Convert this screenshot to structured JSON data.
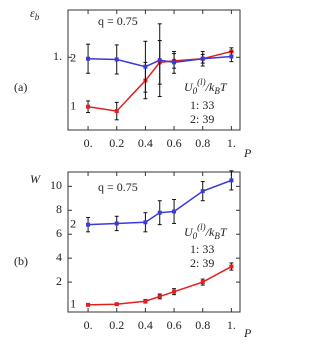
{
  "chart_data": [
    {
      "type": "line",
      "panel_label": "(a)",
      "y_label": [
        {
          "text": "ε",
          "style": "normal"
        },
        {
          "text": "b",
          "style": "sub"
        }
      ],
      "x_label": "P",
      "x": [
        0,
        0.2,
        0.4,
        0.5,
        0.6,
        0.8,
        1
      ],
      "xlim": [
        -0.14,
        1.06
      ],
      "xticks": [
        {
          "value": 0,
          "label": "0."
        },
        0.2,
        0.4,
        0.6,
        0.8,
        {
          "value": 1,
          "label": "1."
        }
      ],
      "ylim": [
        0,
        1.65
      ],
      "yticks": [
        {
          "value": 1,
          "label": "1."
        }
      ],
      "series": [
        {
          "name": "1",
          "color": "#e02020",
          "values": [
            0.32,
            0.26,
            0.68,
            0.93,
            0.95,
            0.98,
            1.08
          ],
          "errors": [
            0.08,
            0.12,
            0.25,
            0.3,
            0.1,
            0.06,
            0.05
          ]
        },
        {
          "name": "2",
          "color": "#3a3ad8",
          "values": [
            0.98,
            0.97,
            0.87,
            0.96,
            0.93,
            0.98,
            1.01
          ],
          "errors": [
            0.2,
            0.2,
            0.35,
            0.5,
            0.15,
            0.1,
            0.07
          ]
        }
      ],
      "annotations": [
        {
          "text": "q = 0.75"
        },
        {
          "parts": [
            {
              "text": "U",
              "style": "normal"
            },
            {
              "text": "0",
              "style": "sub"
            },
            {
              "text": "(l)",
              "style": "sup"
            },
            {
              "text": "/k",
              "style": "normal"
            },
            {
              "text": "B",
              "style": "sub"
            },
            {
              "text": "T",
              "style": "normal"
            }
          ]
        },
        {
          "text": "1:  33"
        },
        {
          "text": "2:  39"
        }
      ]
    },
    {
      "type": "line",
      "panel_label": "(b)",
      "y_label": [
        {
          "text": "W",
          "style": "normal"
        }
      ],
      "x_label": "P",
      "x": [
        0,
        0.2,
        0.4,
        0.5,
        0.6,
        0.8,
        1
      ],
      "xlim": [
        -0.14,
        1.06
      ],
      "xticks": [
        {
          "value": 0,
          "label": "0."
        },
        0.2,
        0.4,
        0.6,
        0.8,
        {
          "value": 1,
          "label": "1."
        }
      ],
      "ylim": [
        -0.5,
        11.2
      ],
      "yticks": [
        2,
        4,
        6,
        8,
        10
      ],
      "series": [
        {
          "name": "1",
          "color": "#e02020",
          "values": [
            0.1,
            0.15,
            0.4,
            0.8,
            1.2,
            2.0,
            3.3
          ],
          "errors": [
            0.1,
            0.1,
            0.15,
            0.2,
            0.25,
            0.25,
            0.3
          ]
        },
        {
          "name": "2",
          "color": "#3a3ad8",
          "values": [
            6.8,
            6.9,
            7.0,
            7.8,
            7.9,
            9.6,
            10.5
          ],
          "errors": [
            0.6,
            0.6,
            0.8,
            1.0,
            1.0,
            0.8,
            0.8
          ]
        }
      ],
      "annotations": [
        {
          "text": "q = 0.75"
        },
        {
          "parts": [
            {
              "text": "U",
              "style": "normal"
            },
            {
              "text": "0",
              "style": "sub"
            },
            {
              "text": "(l)",
              "style": "sup"
            },
            {
              "text": "/k",
              "style": "normal"
            },
            {
              "text": "B",
              "style": "sub"
            },
            {
              "text": "T",
              "style": "normal"
            }
          ]
        },
        {
          "text": "1:  33"
        },
        {
          "text": "2:  39"
        }
      ]
    }
  ]
}
